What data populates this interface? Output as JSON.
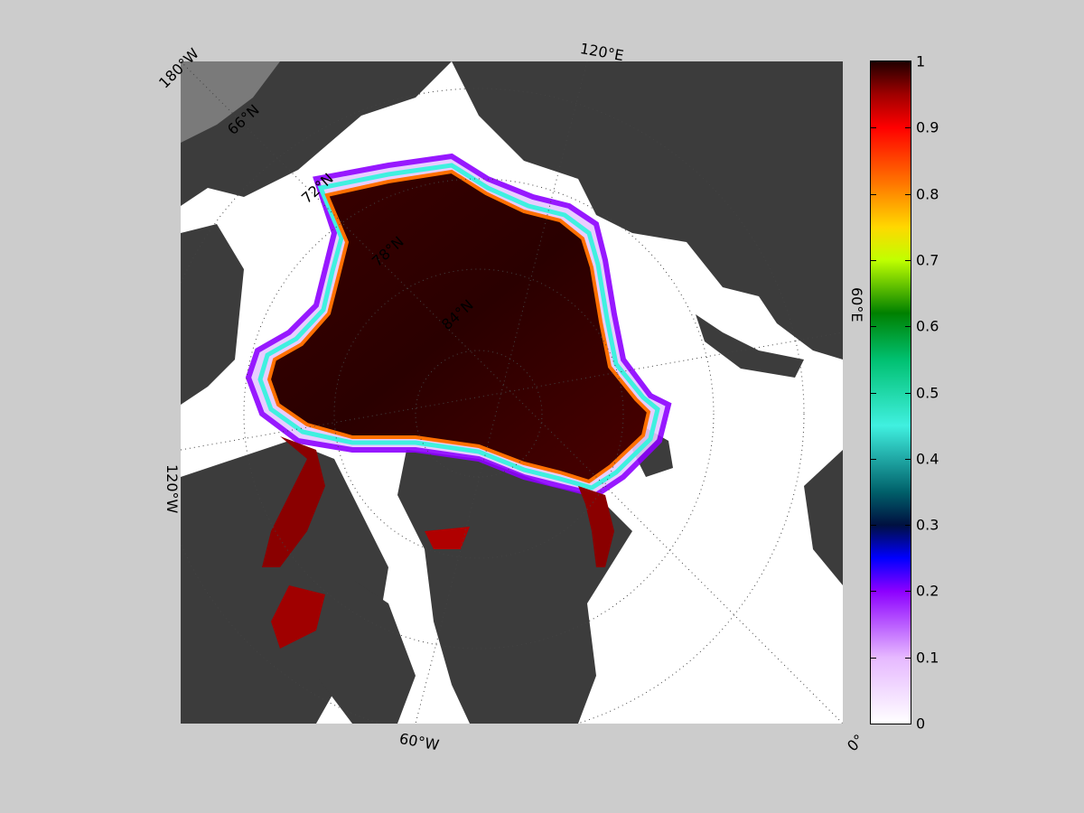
{
  "map": {
    "longitude_labels": [
      {
        "id": "lon-180w",
        "text": "180°W"
      },
      {
        "id": "lon-120e",
        "text": "120°E"
      },
      {
        "id": "lon-60e",
        "text": "60°E"
      },
      {
        "id": "lon-0",
        "text": "0°"
      },
      {
        "id": "lon-60w",
        "text": "60°W"
      },
      {
        "id": "lon-120w",
        "text": "120°W"
      }
    ],
    "latitude_labels": [
      "66°N",
      "72°N",
      "78°N",
      "84°N"
    ],
    "colors": {
      "land": "#3c3c3c",
      "land_shelf": "#7a7a7a",
      "open_water": "#ffffff",
      "graticule": "#444444"
    }
  },
  "colorbar": {
    "min": 0,
    "max": 1,
    "tick_labels": [
      "0",
      "0.1",
      "0.2",
      "0.3",
      "0.4",
      "0.5",
      "0.6",
      "0.7",
      "0.8",
      "0.9",
      "1"
    ],
    "stops": [
      {
        "v": 0.0,
        "color": "#ffffff"
      },
      {
        "v": 0.1,
        "color": "#e6b8ff"
      },
      {
        "v": 0.2,
        "color": "#8c00ff"
      },
      {
        "v": 0.25,
        "color": "#0000ff"
      },
      {
        "v": 0.3,
        "color": "#001040"
      },
      {
        "v": 0.35,
        "color": "#00606a"
      },
      {
        "v": 0.45,
        "color": "#40f0e0"
      },
      {
        "v": 0.55,
        "color": "#00c070"
      },
      {
        "v": 0.62,
        "color": "#008000"
      },
      {
        "v": 0.7,
        "color": "#c0ff00"
      },
      {
        "v": 0.75,
        "color": "#ffd800"
      },
      {
        "v": 0.82,
        "color": "#ff7000"
      },
      {
        "v": 0.9,
        "color": "#ff0000"
      },
      {
        "v": 0.95,
        "color": "#a00000"
      },
      {
        "v": 1.0,
        "color": "#200000"
      }
    ]
  }
}
